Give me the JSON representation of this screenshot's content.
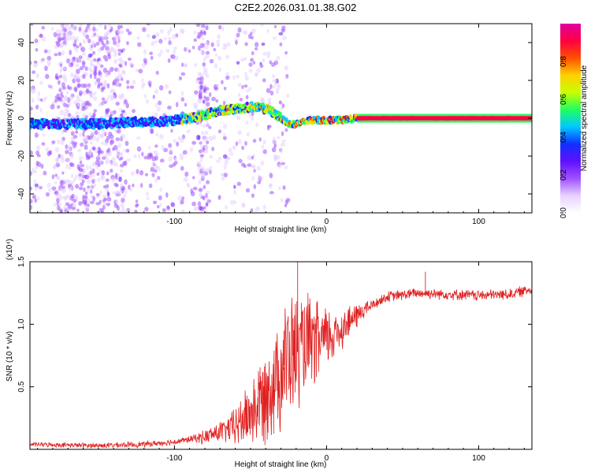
{
  "title": "C2E2.2026.031.01.38.G02",
  "chart_data": [
    {
      "type": "heatmap",
      "name": "spectrogram",
      "xlabel": "Height of straight line (km)",
      "ylabel": "Frequency (Hz)",
      "xlim": [
        -195,
        135
      ],
      "ylim": [
        -50,
        50
      ],
      "xticks": [
        -100,
        0,
        100
      ],
      "yticks": [
        -40,
        -20,
        0,
        20,
        40
      ],
      "ridge": [
        {
          "x": -195,
          "y": -3
        },
        {
          "x": -175,
          "y": -3
        },
        {
          "x": -150,
          "y": -3
        },
        {
          "x": -130,
          "y": -2
        },
        {
          "x": -110,
          "y": -2
        },
        {
          "x": -100,
          "y": -1
        },
        {
          "x": -90,
          "y": 0
        },
        {
          "x": -80,
          "y": 2
        },
        {
          "x": -70,
          "y": 4
        },
        {
          "x": -60,
          "y": 5
        },
        {
          "x": -50,
          "y": 6
        },
        {
          "x": -40,
          "y": 5
        },
        {
          "x": -35,
          "y": 3
        },
        {
          "x": -30,
          "y": 0
        },
        {
          "x": -25,
          "y": -3
        },
        {
          "x": -20,
          "y": -3
        },
        {
          "x": -10,
          "y": -1
        },
        {
          "x": 0,
          "y": -1
        },
        {
          "x": 10,
          "y": -1
        },
        {
          "x": 20,
          "y": 0
        },
        {
          "x": 135,
          "y": 0
        }
      ],
      "colorbar": {
        "label": "Normalized spectral amplitude",
        "range": [
          0,
          1
        ],
        "ticks": [
          "0.0",
          "0.2",
          "0.4",
          "0.6",
          "0.8"
        ]
      },
      "colors": {
        "scale": [
          "#ffffff",
          "#e6d2ff",
          "#a050ff",
          "#6010ff",
          "#1030ff",
          "#00c8ff",
          "#20ff60",
          "#c8ff00",
          "#ffd000",
          "#ff5000",
          "#ff0040",
          "#e000a0"
        ]
      }
    },
    {
      "type": "line",
      "name": "snr",
      "xlabel": "Height of straight line (km)",
      "ylabel": "SNR (10 * v/v)",
      "y_multiplier": "(x10⁴)",
      "xlim": [
        -195,
        135
      ],
      "ylim": [
        0,
        1.5
      ],
      "xticks": [
        -100,
        0,
        100
      ],
      "yticks": [
        "0.5",
        "1.0",
        "1.5"
      ],
      "line_color": "#e02020",
      "trend": [
        {
          "x": -195,
          "y": 0.04
        },
        {
          "x": -150,
          "y": 0.03
        },
        {
          "x": -120,
          "y": 0.04
        },
        {
          "x": -100,
          "y": 0.06
        },
        {
          "x": -80,
          "y": 0.1
        },
        {
          "x": -60,
          "y": 0.18
        },
        {
          "x": -45,
          "y": 0.35
        },
        {
          "x": -35,
          "y": 0.55
        },
        {
          "x": -25,
          "y": 0.72
        },
        {
          "x": -15,
          "y": 0.82
        },
        {
          "x": -5,
          "y": 0.85
        },
        {
          "x": 5,
          "y": 0.92
        },
        {
          "x": 15,
          "y": 1.02
        },
        {
          "x": 25,
          "y": 1.12
        },
        {
          "x": 40,
          "y": 1.22
        },
        {
          "x": 60,
          "y": 1.25
        },
        {
          "x": 80,
          "y": 1.24
        },
        {
          "x": 100,
          "y": 1.23
        },
        {
          "x": 120,
          "y": 1.24
        },
        {
          "x": 135,
          "y": 1.28
        }
      ],
      "noise": [
        {
          "x": -195,
          "amp": 0.02
        },
        {
          "x": -90,
          "amp": 0.03
        },
        {
          "x": -65,
          "amp": 0.12
        },
        {
          "x": -40,
          "amp": 0.45
        },
        {
          "x": -25,
          "amp": 0.6
        },
        {
          "x": -15,
          "amp": 0.5
        },
        {
          "x": 0,
          "amp": 0.3
        },
        {
          "x": 15,
          "amp": 0.15
        },
        {
          "x": 30,
          "amp": 0.05
        },
        {
          "x": 135,
          "amp": 0.05
        }
      ],
      "spikes": [
        {
          "x": -19,
          "y": 1.55
        },
        {
          "x": -22,
          "y": 1.05
        },
        {
          "x": -28,
          "y": 0.95
        },
        {
          "x": -10,
          "y": 0.9
        },
        {
          "x": 65,
          "y": 1.42
        }
      ]
    }
  ]
}
